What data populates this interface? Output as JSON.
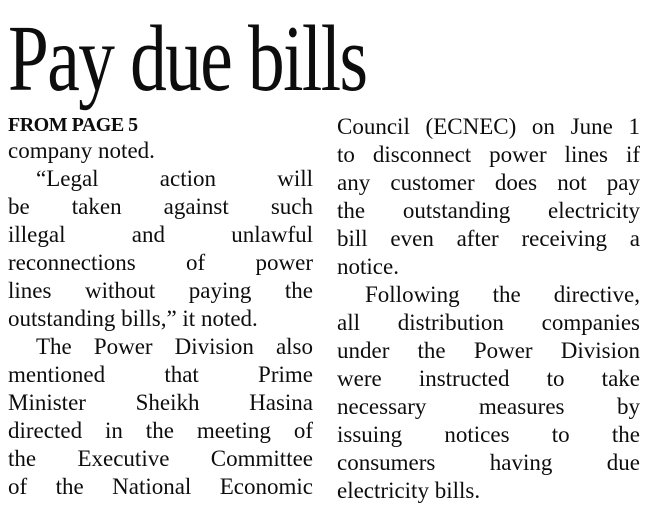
{
  "colors": {
    "paper": "#ffffff",
    "ink": "#0d0d0d"
  },
  "article": {
    "headline": "Pay due bills",
    "kicker": "FROM PAGE 5",
    "columns": [
      {
        "name": "left",
        "paragraphs": [
          {
            "indent": false,
            "justify_last": false,
            "lines": [
              "company noted."
            ]
          },
          {
            "indent": true,
            "justify_last": false,
            "lines": [
              "“Legal action will",
              "be taken against such",
              "illegal and unlawful",
              "reconnections of power",
              "lines without paying the",
              "outstanding bills,” it noted."
            ]
          },
          {
            "indent": true,
            "justify_last": true,
            "lines": [
              "The Power Division also",
              "mentioned that Prime",
              "Minister Sheikh Hasina",
              "directed in the meeting of",
              "the Executive Committee",
              "of the National Economic"
            ]
          }
        ]
      },
      {
        "name": "right",
        "paragraphs": [
          {
            "indent": false,
            "justify_last": false,
            "lines": [
              "Council (ECNEC) on June 1",
              "to disconnect power lines if",
              "any customer does not pay",
              "the outstanding electricity",
              "bill even after receiving a",
              "notice."
            ]
          },
          {
            "indent": true,
            "justify_last": false,
            "lines": [
              "Following the directive,",
              "all distribution companies",
              "under the Power Division",
              "were instructed to take",
              "necessary measures by",
              "issuing notices to the",
              "consumers having due",
              "electricity bills."
            ]
          }
        ]
      }
    ]
  }
}
